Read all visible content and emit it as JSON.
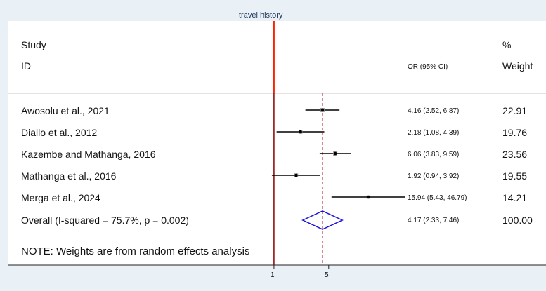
{
  "chart_data": {
    "type": "forest",
    "title": "travel history",
    "header": {
      "study": "Study",
      "id": "ID",
      "or_label": "OR (95% CI)",
      "pct": "%",
      "weight": "Weight"
    },
    "studies": [
      {
        "name": "Awosolu et al., 2021",
        "or": 4.16,
        "lo": 2.52,
        "hi": 6.87,
        "ci_text": "4.16 (2.52, 6.87)",
        "weight": 22.91,
        "weight_text": "22.91"
      },
      {
        "name": "Diallo et al., 2012",
        "or": 2.18,
        "lo": 1.08,
        "hi": 4.39,
        "ci_text": "2.18 (1.08, 4.39)",
        "weight": 19.76,
        "weight_text": "19.76"
      },
      {
        "name": "Kazembe and Mathanga, 2016",
        "or": 6.06,
        "lo": 3.83,
        "hi": 9.59,
        "ci_text": "6.06 (3.83, 9.59)",
        "weight": 23.56,
        "weight_text": "23.56"
      },
      {
        "name": "Mathanga et al., 2016",
        "or": 1.92,
        "lo": 0.94,
        "hi": 3.92,
        "ci_text": "1.92 (0.94, 3.92)",
        "weight": 19.55,
        "weight_text": "19.55"
      },
      {
        "name": "Merga et al., 2024",
        "or": 15.94,
        "lo": 5.43,
        "hi": 46.79,
        "ci_text": "15.94 (5.43, 46.79)",
        "weight": 14.21,
        "weight_text": "14.21"
      }
    ],
    "overall": {
      "label": "Overall  (I-squared = 75.7%, p = 0.002)",
      "or": 4.17,
      "lo": 2.33,
      "hi": 7.46,
      "ci_text": "4.17 (2.33, 7.46)",
      "weight_text": "100.00"
    },
    "note": "NOTE: Weights are from random effects analysis",
    "scale": "log",
    "x_range": [
      0.9415,
      46.79
    ],
    "x_ticks": [
      {
        "value": 1,
        "label": "1"
      },
      {
        "value": 5,
        "label": "5"
      }
    ],
    "reference_value": 1,
    "colors": {
      "null_line": "#8b0000",
      "top_line": "#ff2200",
      "overall_line": "#b0102a",
      "diamond": "#1a10e0",
      "point": "#000000"
    }
  }
}
